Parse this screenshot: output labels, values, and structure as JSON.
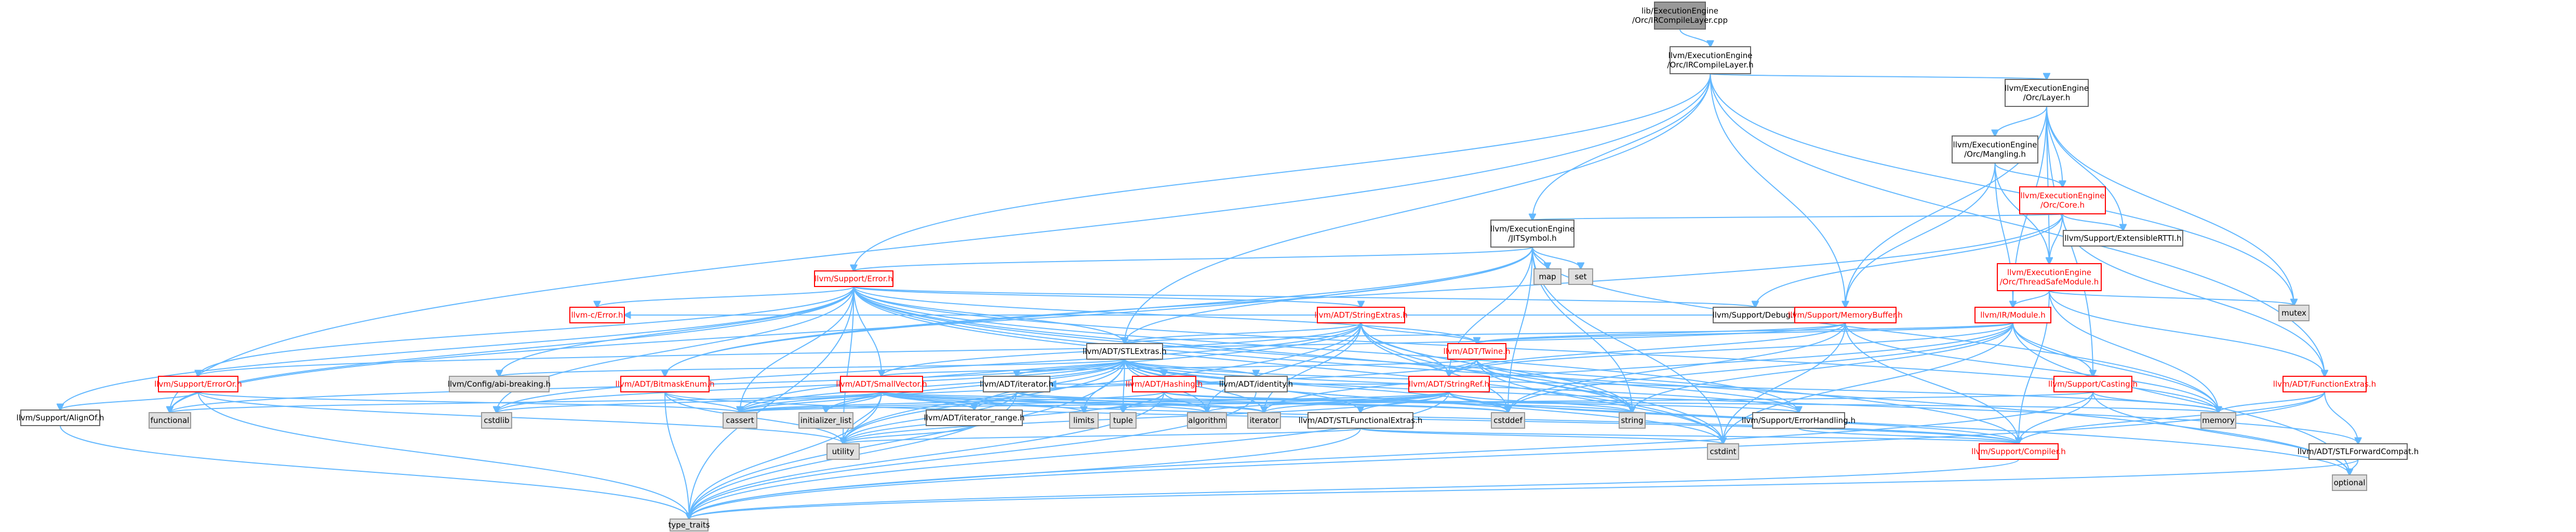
{
  "nodes": [
    {
      "id": "root",
      "kind": "root",
      "lines": [
        "lib/ExecutionEngine",
        "/Orc/IRCompileLayer.cpp"
      ]
    },
    {
      "id": "ircl",
      "kind": "plain",
      "lines": [
        "llvm/ExecutionEngine",
        "/Orc/IRCompileLayer.h"
      ]
    },
    {
      "id": "layer",
      "kind": "plain",
      "lines": [
        "llvm/ExecutionEngine",
        "/Orc/Layer.h"
      ]
    },
    {
      "id": "mangling",
      "kind": "plain",
      "lines": [
        "llvm/ExecutionEngine",
        "/Orc/Mangling.h"
      ]
    },
    {
      "id": "core",
      "kind": "doc",
      "lines": [
        "llvm/ExecutionEngine",
        "/Orc/Core.h"
      ]
    },
    {
      "id": "extrtti",
      "kind": "plain",
      "lines": [
        "llvm/Support/ExtensibleRTTI.h"
      ]
    },
    {
      "id": "jitsym",
      "kind": "plain",
      "lines": [
        "llvm/ExecutionEngine",
        "/JITSymbol.h"
      ]
    },
    {
      "id": "map",
      "kind": "sys",
      "lines": [
        "map"
      ]
    },
    {
      "id": "set",
      "kind": "sys",
      "lines": [
        "set"
      ]
    },
    {
      "id": "tsm",
      "kind": "doc",
      "lines": [
        "llvm/ExecutionEngine",
        "/Orc/ThreadSafeModule.h"
      ]
    },
    {
      "id": "mutex",
      "kind": "sys",
      "lines": [
        "mutex"
      ]
    },
    {
      "id": "error",
      "kind": "doc",
      "lines": [
        "llvm/Support/Error.h"
      ]
    },
    {
      "id": "cerror",
      "kind": "doc",
      "lines": [
        "llvm-c/Error.h"
      ]
    },
    {
      "id": "strext",
      "kind": "doc",
      "lines": [
        "llvm/ADT/StringExtras.h"
      ]
    },
    {
      "id": "debug",
      "kind": "plain",
      "lines": [
        "llvm/Support/Debug.h"
      ]
    },
    {
      "id": "membuf",
      "kind": "doc",
      "lines": [
        "llvm/Support/MemoryBuffer.h"
      ]
    },
    {
      "id": "irmod",
      "kind": "doc",
      "lines": [
        "llvm/IR/Module.h"
      ]
    },
    {
      "id": "stlext",
      "kind": "plain",
      "lines": [
        "llvm/ADT/STLExtras.h"
      ]
    },
    {
      "id": "twine",
      "kind": "doc",
      "lines": [
        "llvm/ADT/Twine.h"
      ]
    },
    {
      "id": "erroror",
      "kind": "doc",
      "lines": [
        "llvm/Support/ErrorOr.h"
      ]
    },
    {
      "id": "confbreak",
      "kind": "sys",
      "lines": [
        "llvm/Config/abi-breaking.h"
      ]
    },
    {
      "id": "bitmask",
      "kind": "doc",
      "lines": [
        "llvm/ADT/BitmaskEnum.h"
      ]
    },
    {
      "id": "smallvec",
      "kind": "doc",
      "lines": [
        "llvm/ADT/SmallVector.h"
      ]
    },
    {
      "id": "adtiter",
      "kind": "plain",
      "lines": [
        "llvm/ADT/iterator.h"
      ]
    },
    {
      "id": "hashing",
      "kind": "doc",
      "lines": [
        "llvm/ADT/Hashing.h"
      ]
    },
    {
      "id": "identity",
      "kind": "plain",
      "lines": [
        "llvm/ADT/identity.h"
      ]
    },
    {
      "id": "stringref",
      "kind": "doc",
      "lines": [
        "llvm/ADT/StringRef.h"
      ]
    },
    {
      "id": "casting",
      "kind": "doc",
      "lines": [
        "llvm/Support/Casting.h"
      ]
    },
    {
      "id": "funcext",
      "kind": "doc",
      "lines": [
        "llvm/ADT/FunctionExtras.h"
      ]
    },
    {
      "id": "alignof",
      "kind": "plain",
      "lines": [
        "llvm/Support/AlignOf.h"
      ]
    },
    {
      "id": "functional",
      "kind": "sys",
      "lines": [
        "functional"
      ]
    },
    {
      "id": "cstdlib",
      "kind": "sys",
      "lines": [
        "cstdlib"
      ]
    },
    {
      "id": "cassert",
      "kind": "sys",
      "lines": [
        "cassert"
      ]
    },
    {
      "id": "initlist",
      "kind": "sys",
      "lines": [
        "initializer_list"
      ]
    },
    {
      "id": "itrange",
      "kind": "plain",
      "lines": [
        "llvm/ADT/iterator_range.h"
      ]
    },
    {
      "id": "limits",
      "kind": "sys",
      "lines": [
        "limits"
      ]
    },
    {
      "id": "tuple",
      "kind": "sys",
      "lines": [
        "tuple"
      ]
    },
    {
      "id": "algorithm",
      "kind": "sys",
      "lines": [
        "algorithm"
      ]
    },
    {
      "id": "iterator",
      "kind": "sys",
      "lines": [
        "iterator"
      ]
    },
    {
      "id": "stlfunc",
      "kind": "plain",
      "lines": [
        "llvm/ADT/STLFunctionalExtras.h"
      ]
    },
    {
      "id": "cstddef",
      "kind": "sys",
      "lines": [
        "cstddef"
      ]
    },
    {
      "id": "string",
      "kind": "sys",
      "lines": [
        "string"
      ]
    },
    {
      "id": "errhandling",
      "kind": "plain",
      "lines": [
        "llvm/Support/ErrorHandling.h"
      ]
    },
    {
      "id": "memory",
      "kind": "sys",
      "lines": [
        "memory"
      ]
    },
    {
      "id": "stlfwd",
      "kind": "plain",
      "lines": [
        "llvm/ADT/STLForwardCompat.h"
      ]
    },
    {
      "id": "utility",
      "kind": "sys",
      "lines": [
        "utility"
      ]
    },
    {
      "id": "compiler",
      "kind": "doc",
      "lines": [
        "llvm/Support/Compiler.h"
      ]
    },
    {
      "id": "cstdint",
      "kind": "sys",
      "lines": [
        "cstdint"
      ]
    },
    {
      "id": "optional",
      "kind": "sys",
      "lines": [
        "optional"
      ]
    },
    {
      "id": "typetraits",
      "kind": "sys",
      "lines": [
        "type_traits"
      ]
    }
  ],
  "edges": [
    [
      "root",
      "ircl"
    ],
    [
      "ircl",
      "layer"
    ],
    [
      "ircl",
      "jitsym"
    ],
    [
      "ircl",
      "error"
    ],
    [
      "ircl",
      "membuf"
    ],
    [
      "ircl",
      "stlext"
    ],
    [
      "ircl",
      "mutex"
    ],
    [
      "ircl",
      "funcext"
    ],
    [
      "ircl",
      "functional"
    ],
    [
      "layer",
      "mangling"
    ],
    [
      "layer",
      "core"
    ],
    [
      "layer",
      "tsm"
    ],
    [
      "layer",
      "extrtti"
    ],
    [
      "layer",
      "irmod"
    ],
    [
      "layer",
      "membuf"
    ],
    [
      "layer",
      "casting"
    ],
    [
      "layer",
      "mutex"
    ],
    [
      "mangling",
      "core"
    ],
    [
      "mangling",
      "tsm"
    ],
    [
      "mangling",
      "irmod"
    ],
    [
      "mangling",
      "membuf"
    ],
    [
      "core",
      "extrtti"
    ],
    [
      "core",
      "jitsym"
    ],
    [
      "core",
      "tsm"
    ],
    [
      "core",
      "funcext"
    ],
    [
      "core",
      "debug"
    ],
    [
      "core",
      "bitmask"
    ],
    [
      "jitsym",
      "map"
    ],
    [
      "jitsym",
      "set"
    ],
    [
      "jitsym",
      "error"
    ],
    [
      "jitsym",
      "stringref"
    ],
    [
      "jitsym",
      "string"
    ],
    [
      "jitsym",
      "cstdint"
    ],
    [
      "jitsym",
      "cstddef"
    ],
    [
      "jitsym",
      "memory"
    ],
    [
      "jitsym",
      "functional"
    ],
    [
      "jitsym",
      "bitmask"
    ],
    [
      "jitsym",
      "stlext"
    ],
    [
      "tsm",
      "irmod"
    ],
    [
      "tsm",
      "mutex"
    ],
    [
      "tsm",
      "memory"
    ],
    [
      "tsm",
      "compiler"
    ],
    [
      "tsm",
      "funcext"
    ],
    [
      "error",
      "cerror"
    ],
    [
      "error",
      "strext"
    ],
    [
      "error",
      "debug"
    ],
    [
      "error",
      "twine"
    ],
    [
      "error",
      "erroror"
    ],
    [
      "error",
      "confbreak"
    ],
    [
      "error",
      "smallvec"
    ],
    [
      "error",
      "stlext"
    ],
    [
      "error",
      "alignof"
    ],
    [
      "error",
      "compiler"
    ],
    [
      "error",
      "errhandling"
    ],
    [
      "error",
      "cassert"
    ],
    [
      "error",
      "cstdint"
    ],
    [
      "error",
      "cstdlib"
    ],
    [
      "error",
      "functional"
    ],
    [
      "error",
      "memory"
    ],
    [
      "error",
      "string"
    ],
    [
      "error",
      "utility"
    ],
    [
      "error",
      "typetraits"
    ],
    [
      "error",
      "optional"
    ],
    [
      "strext",
      "stringref"
    ],
    [
      "strext",
      "twine"
    ],
    [
      "strext",
      "smallvec"
    ],
    [
      "strext",
      "stlext"
    ],
    [
      "strext",
      "cassert"
    ],
    [
      "strext",
      "cstddef"
    ],
    [
      "strext",
      "cstdint"
    ],
    [
      "strext",
      "cstdlib"
    ],
    [
      "strext",
      "iterator"
    ],
    [
      "strext",
      "string"
    ],
    [
      "strext",
      "utility"
    ],
    [
      "strext",
      "algorithm"
    ],
    [
      "membuf",
      "twine"
    ],
    [
      "membuf",
      "stringref"
    ],
    [
      "membuf",
      "erroror"
    ],
    [
      "membuf",
      "cerror"
    ],
    [
      "membuf",
      "memory"
    ],
    [
      "membuf",
      "cstddef"
    ],
    [
      "membuf",
      "cstdint"
    ],
    [
      "membuf",
      "compiler"
    ],
    [
      "irmod",
      "stringref"
    ],
    [
      "irmod",
      "twine"
    ],
    [
      "irmod",
      "casting"
    ],
    [
      "irmod",
      "stlext"
    ],
    [
      "irmod",
      "memory"
    ],
    [
      "irmod",
      "string"
    ],
    [
      "irmod",
      "cstddef"
    ],
    [
      "irmod",
      "cstdint"
    ],
    [
      "irmod",
      "iterator"
    ],
    [
      "irmod",
      "optional"
    ],
    [
      "stlext",
      "stlfwd"
    ],
    [
      "stlext",
      "stlfunc"
    ],
    [
      "stlext",
      "adtiter"
    ],
    [
      "stlext",
      "itrange"
    ],
    [
      "stlext",
      "hashing"
    ],
    [
      "stlext",
      "identity"
    ],
    [
      "stlext",
      "confbreak"
    ],
    [
      "stlext",
      "errhandling"
    ],
    [
      "stlext",
      "algorithm"
    ],
    [
      "stlext",
      "cassert"
    ],
    [
      "stlext",
      "cstddef"
    ],
    [
      "stlext",
      "cstdint"
    ],
    [
      "stlext",
      "cstdlib"
    ],
    [
      "stlext",
      "functional"
    ],
    [
      "stlext",
      "initlist"
    ],
    [
      "stlext",
      "iterator"
    ],
    [
      "stlext",
      "limits"
    ],
    [
      "stlext",
      "memory"
    ],
    [
      "stlext",
      "optional"
    ],
    [
      "stlext",
      "tuple"
    ],
    [
      "stlext",
      "typetraits"
    ],
    [
      "stlext",
      "utility"
    ],
    [
      "twine",
      "smallvec"
    ],
    [
      "twine",
      "stringref"
    ],
    [
      "twine",
      "errhandling"
    ],
    [
      "twine",
      "cassert"
    ],
    [
      "twine",
      "cstdint"
    ],
    [
      "twine",
      "string"
    ],
    [
      "twine",
      "string"
    ],
    [
      "erroror",
      "alignof"
    ],
    [
      "erroror",
      "cassert"
    ],
    [
      "erroror",
      "typetraits"
    ],
    [
      "erroror",
      "utility"
    ],
    [
      "bitmask",
      "typetraits"
    ],
    [
      "bitmask",
      "utility"
    ],
    [
      "bitmask",
      "cassert"
    ],
    [
      "bitmask",
      "compiler"
    ],
    [
      "smallvec",
      "compiler"
    ],
    [
      "smallvec",
      "algorithm"
    ],
    [
      "smallvec",
      "cassert"
    ],
    [
      "smallvec",
      "cstddef"
    ],
    [
      "smallvec",
      "cstdlib"
    ],
    [
      "smallvec",
      "cstring"
    ],
    [
      "smallvec",
      "functional"
    ],
    [
      "smallvec",
      "initlist"
    ],
    [
      "smallvec",
      "iterator"
    ],
    [
      "smallvec",
      "limits"
    ],
    [
      "smallvec",
      "memory"
    ],
    [
      "smallvec",
      "typetraits"
    ],
    [
      "smallvec",
      "utility"
    ],
    [
      "smallvec",
      "itrange"
    ],
    [
      "adtiter",
      "itrange"
    ],
    [
      "adtiter",
      "cstddef"
    ],
    [
      "adtiter",
      "iterator"
    ],
    [
      "adtiter",
      "typetraits"
    ],
    [
      "adtiter",
      "utility"
    ],
    [
      "hashing",
      "errhandling"
    ],
    [
      "hashing",
      "algorithm"
    ],
    [
      "hashing",
      "cassert"
    ],
    [
      "hashing",
      "cstring"
    ],
    [
      "hashing",
      "string"
    ],
    [
      "hashing",
      "tuple"
    ],
    [
      "hashing",
      "utility"
    ],
    [
      "hashing",
      "typetraits"
    ],
    [
      "identity",
      "typetraits"
    ],
    [
      "stringref",
      "stlfunc"
    ],
    [
      "stringref",
      "adtiter"
    ],
    [
      "stringref",
      "compiler"
    ],
    [
      "stringref",
      "algorithm"
    ],
    [
      "stringref",
      "cassert"
    ],
    [
      "stringref",
      "cstddef"
    ],
    [
      "stringref",
      "cstring"
    ],
    [
      "stringref",
      "iterator"
    ],
    [
      "stringref",
      "limits"
    ],
    [
      "stringref",
      "string"
    ],
    [
      "stringref",
      "typetraits"
    ],
    [
      "stringref",
      "utility"
    ],
    [
      "casting",
      "compiler"
    ],
    [
      "casting",
      "cassert"
    ],
    [
      "casting",
      "memory"
    ],
    [
      "casting",
      "optional"
    ],
    [
      "casting",
      "typetraits"
    ],
    [
      "funcext",
      "stlfwd"
    ],
    [
      "funcext",
      "memory"
    ],
    [
      "funcext",
      "typetraits"
    ],
    [
      "funcext",
      "compiler"
    ],
    [
      "alignof",
      "typetraits"
    ],
    [
      "itrange",
      "utility"
    ],
    [
      "stlfunc",
      "compiler"
    ],
    [
      "stlfunc",
      "cstdint"
    ],
    [
      "stlfunc",
      "typetraits"
    ],
    [
      "stlfunc",
      "utility"
    ],
    [
      "errhandling",
      "compiler"
    ],
    [
      "stlfwd",
      "optional"
    ],
    [
      "stlfwd",
      "typetraits"
    ],
    [
      "compiler",
      "typetraits"
    ]
  ]
}
